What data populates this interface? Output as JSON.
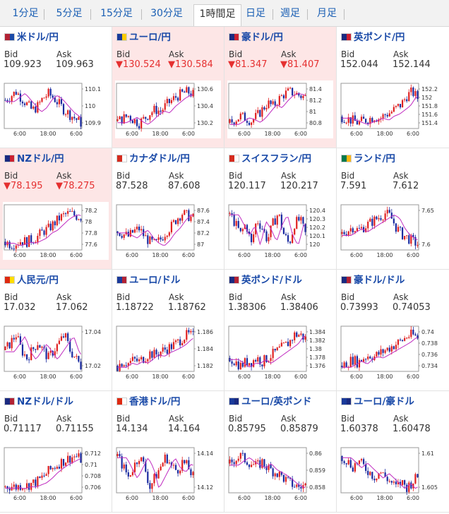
{
  "tabs": [
    {
      "label": "1分足",
      "active": false
    },
    {
      "label": "5分足",
      "active": false
    },
    {
      "label": "15分足",
      "active": false
    },
    {
      "label": "30分足",
      "active": false
    },
    {
      "label": "1時間足",
      "active": true
    },
    {
      "label": "日足",
      "active": false
    },
    {
      "label": "週足",
      "active": false
    },
    {
      "label": "月足",
      "active": false
    }
  ],
  "bid_label": "Bid",
  "ask_label": "Ask",
  "x_ticks": [
    "6:00",
    "18:00",
    "6:00"
  ],
  "colors": {
    "up": "#e02020",
    "down": "#1a2aa0",
    "ma": "#c02cc0",
    "link": "#1a4aa8",
    "highlight": "#fde6e6"
  },
  "pairs": [
    {
      "name": "米ドル/円",
      "flag": [
        "#b22234",
        "#1a4aa8"
      ],
      "bid": "109.923",
      "ask": "109.963",
      "down": false,
      "ticks": [
        "110.1",
        "110",
        "109.9"
      ],
      "trend": [
        110.04,
        110.06,
        110.08,
        110.05,
        110.02,
        109.99,
        110.01,
        110.05,
        110.07,
        110.05,
        110.02,
        109.99,
        109.97,
        109.95,
        109.93
      ]
    },
    {
      "name": "ユーロ/円",
      "flag": [
        "#1a3a9a",
        "#ffcc00"
      ],
      "bid": "▼130.524",
      "ask": "▼130.584",
      "down": true,
      "ticks": [
        "130.6",
        "130.4",
        "130.2"
      ],
      "trend": [
        130.27,
        130.3,
        130.33,
        130.28,
        130.25,
        130.3,
        130.36,
        130.4,
        130.38,
        130.45,
        130.5,
        130.55,
        130.58,
        130.6,
        130.57
      ]
    },
    {
      "name": "豪ドル/円",
      "flag": [
        "#1a2a80",
        "#cc2030"
      ],
      "bid": "▼81.347",
      "ask": "▼81.407",
      "down": true,
      "ticks": [
        "81.4",
        "81.2",
        "81",
        "80.8"
      ],
      "trend": [
        80.95,
        81.0,
        81.05,
        81.02,
        80.98,
        81.05,
        81.15,
        81.25,
        81.2,
        81.3,
        81.38,
        81.42,
        81.4,
        81.36,
        81.34
      ]
    },
    {
      "name": "英ポンド/円",
      "flag": [
        "#1a2a80",
        "#cc2030"
      ],
      "bid": "152.044",
      "ask": "152.144",
      "down": false,
      "ticks": [
        "152.2",
        "152",
        "151.8",
        "151.6",
        "151.4"
      ],
      "trend": [
        151.6,
        151.55,
        151.5,
        151.45,
        151.5,
        151.55,
        151.6,
        151.55,
        151.65,
        151.7,
        151.8,
        151.9,
        152.1,
        152.2,
        152.05
      ]
    },
    {
      "name": "NZドル/円",
      "flag": [
        "#1a2a80",
        "#cc2030"
      ],
      "bid": "▼78.195",
      "ask": "▼78.275",
      "down": true,
      "ticks": [
        "78.2",
        "78",
        "77.8",
        "77.6"
      ],
      "trend": [
        77.7,
        77.65,
        77.68,
        77.72,
        77.7,
        77.75,
        77.8,
        77.9,
        77.95,
        78.05,
        78.15,
        78.22,
        78.25,
        78.2,
        78.18
      ]
    },
    {
      "name": "カナダドル/円",
      "flag": [
        "#d52b1e",
        "#ffffff"
      ],
      "bid": "87.528",
      "ask": "87.608",
      "down": false,
      "ticks": [
        "87.6",
        "87.4",
        "87.2",
        "87"
      ],
      "trend": [
        87.3,
        87.25,
        87.2,
        87.3,
        87.35,
        87.2,
        87.1,
        87.05,
        87.15,
        87.3,
        87.4,
        87.55,
        87.65,
        87.6,
        87.55
      ]
    },
    {
      "name": "スイスフラン/円",
      "flag": [
        "#d52b1e",
        "#ffffff"
      ],
      "bid": "120.117",
      "ask": "120.217",
      "down": false,
      "ticks": [
        "120.4",
        "120.3",
        "120.2",
        "120.1",
        "120"
      ],
      "trend": [
        120.25,
        120.2,
        120.15,
        120.2,
        120.1,
        120.22,
        120.18,
        120.12,
        120.2,
        120.25,
        120.15,
        120.1,
        120.2,
        120.22,
        120.15
      ]
    },
    {
      "name": "ランド/円",
      "flag": [
        "#007a4d",
        "#ffb612"
      ],
      "bid": "7.591",
      "ask": "7.612",
      "down": false,
      "ticks": [
        "7.65",
        "7.6"
      ],
      "trend": [
        7.6,
        7.61,
        7.62,
        7.61,
        7.62,
        7.63,
        7.64,
        7.65,
        7.66,
        7.65,
        7.62,
        7.6,
        7.59,
        7.58,
        7.57
      ]
    },
    {
      "name": "人民元/円",
      "flag": [
        "#de2910",
        "#ffde00"
      ],
      "bid": "17.032",
      "ask": "17.062",
      "down": false,
      "ticks": [
        "17.04",
        "17.02"
      ],
      "trend": [
        17.04,
        17.045,
        17.05,
        17.04,
        17.035,
        17.04,
        17.045,
        17.04,
        17.035,
        17.04,
        17.045,
        17.05,
        17.04,
        17.035,
        17.03
      ]
    },
    {
      "name": "ユーロ/ドル",
      "flag": [
        "#1a3a9a",
        "#b22234"
      ],
      "bid": "1.18722",
      "ask": "1.18762",
      "down": false,
      "ticks": [
        "1.186",
        "1.184",
        "1.182"
      ],
      "trend": [
        1.1835,
        1.184,
        1.1838,
        1.1842,
        1.184,
        1.1845,
        1.185,
        1.1848,
        1.1852,
        1.1855,
        1.1858,
        1.1862,
        1.1868,
        1.1872,
        1.187
      ]
    },
    {
      "name": "英ポンド/ドル",
      "flag": [
        "#1a2a80",
        "#b22234"
      ],
      "bid": "1.38306",
      "ask": "1.38406",
      "down": false,
      "ticks": [
        "1.384",
        "1.382",
        "1.38",
        "1.378",
        "1.376"
      ],
      "trend": [
        1.378,
        1.377,
        1.376,
        1.377,
        1.377,
        1.378,
        1.377,
        1.378,
        1.379,
        1.38,
        1.381,
        1.382,
        1.384,
        1.384,
        1.383
      ]
    },
    {
      "name": "豪ドル/ドル",
      "flag": [
        "#1a2a80",
        "#b22234"
      ],
      "bid": "0.73993",
      "ask": "0.74053",
      "down": false,
      "ticks": [
        "0.74",
        "0.738",
        "0.736",
        "0.734"
      ],
      "trend": [
        0.7355,
        0.736,
        0.7365,
        0.736,
        0.7368,
        0.7372,
        0.737,
        0.7375,
        0.738,
        0.7385,
        0.739,
        0.7395,
        0.7402,
        0.7405,
        0.74
      ]
    },
    {
      "name": "NZドル/ドル",
      "flag": [
        "#1a2a80",
        "#b22234"
      ],
      "bid": "0.71117",
      "ask": "0.71155",
      "down": false,
      "ticks": [
        "0.712",
        "0.71",
        "0.708",
        "0.706"
      ],
      "trend": [
        0.7062,
        0.7063,
        0.7061,
        0.7065,
        0.7064,
        0.7068,
        0.7072,
        0.708,
        0.709,
        0.7098,
        0.7105,
        0.711,
        0.7115,
        0.7118,
        0.7112
      ]
    },
    {
      "name": "香港ドル/円",
      "flag": [
        "#de2910",
        "#ffffff"
      ],
      "bid": "14.134",
      "ask": "14.164",
      "down": false,
      "ticks": [
        "14.14",
        "14.12"
      ],
      "trend": [
        14.145,
        14.14,
        14.135,
        14.14,
        14.145,
        14.14,
        14.13,
        14.135,
        14.14,
        14.145,
        14.14,
        14.138,
        14.142,
        14.14,
        14.135
      ]
    },
    {
      "name": "ユーロ/英ポンド",
      "flag": [
        "#1a3a9a",
        "#1a2a80"
      ],
      "bid": "0.85795",
      "ask": "0.85879",
      "down": false,
      "ticks": [
        "0.86",
        "0.859",
        "0.858"
      ],
      "trend": [
        0.8595,
        0.8598,
        0.86,
        0.8597,
        0.8595,
        0.8593,
        0.8596,
        0.8592,
        0.859,
        0.8588,
        0.8585,
        0.8582,
        0.858,
        0.8579,
        0.858
      ]
    },
    {
      "name": "ユーロ/豪ドル",
      "flag": [
        "#1a3a9a",
        "#1a2a80"
      ],
      "bid": "1.60378",
      "ask": "1.60478",
      "down": false,
      "ticks": [
        "1.61",
        "1.605"
      ],
      "trend": [
        1.608,
        1.607,
        1.606,
        1.607,
        1.606,
        1.605,
        1.604,
        1.605,
        1.604,
        1.603,
        1.602,
        1.603,
        1.602,
        1.603,
        1.604
      ]
    }
  ]
}
